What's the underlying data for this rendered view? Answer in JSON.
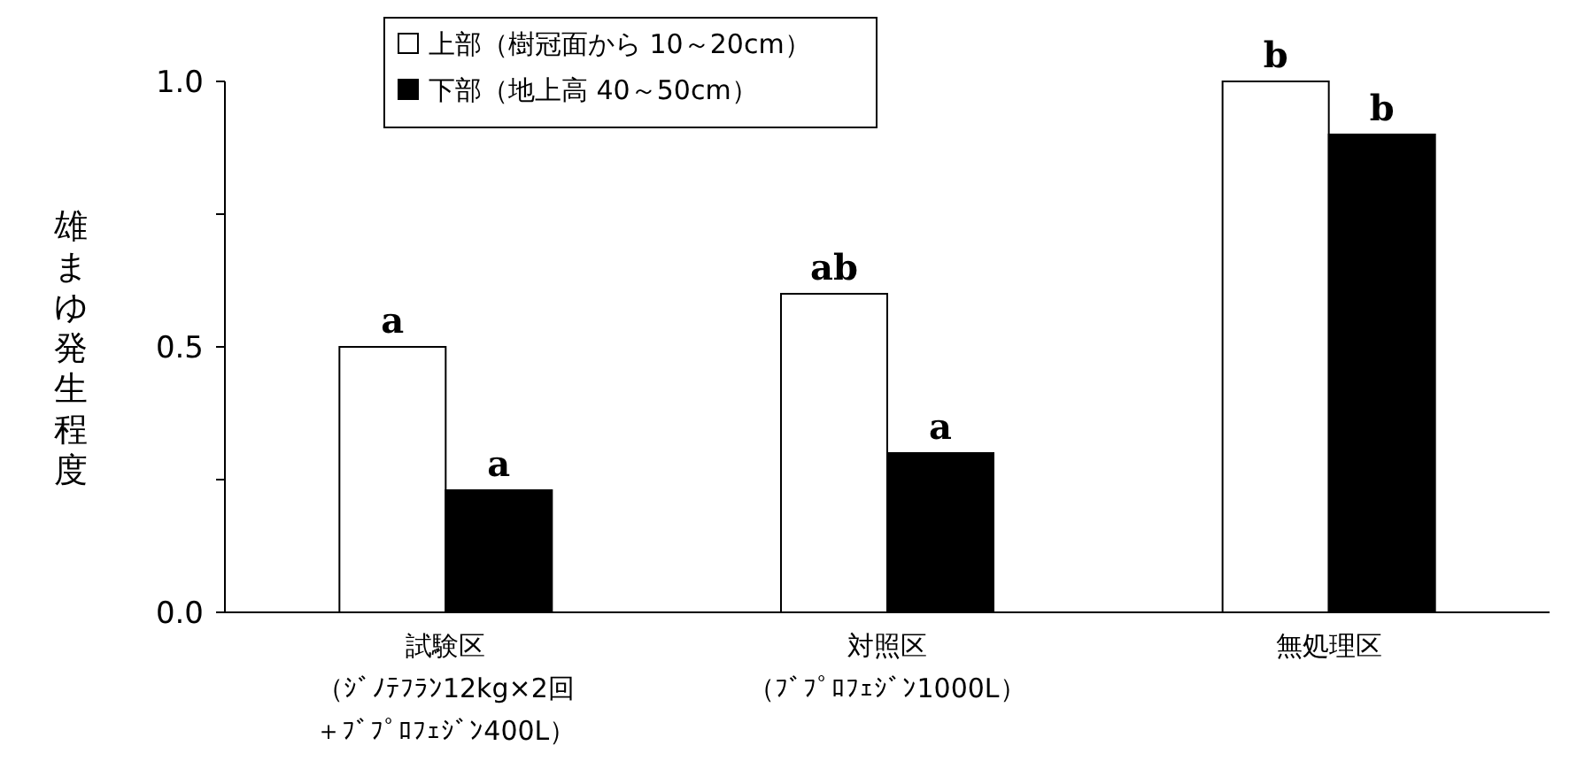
{
  "chart_data": {
    "type": "bar",
    "ylabel": "雄まゆ発生程度",
    "categories": [
      "試験区（ｼﾞﾉﾃﾌﾗﾝ12kg×2回＋ﾌﾞﾌﾟﾛﾌｪｼﾞﾝ400L）",
      "対照区（ﾌﾞﾌﾟﾛﾌｪｼﾞﾝ1000L）",
      "無処理区"
    ],
    "series": [
      {
        "name": "上部（樹冠面から 10～20cm）",
        "color": "#ffffff",
        "values": [
          0.5,
          0.6,
          1.0
        ],
        "value_labels": [
          "a",
          "ab",
          "b"
        ]
      },
      {
        "name": "下部（地上高 40～50cm）",
        "color": "#000000",
        "values": [
          0.23,
          0.3,
          0.9
        ],
        "value_labels": [
          "a",
          "a",
          "b"
        ]
      }
    ],
    "ylim": [
      0,
      1
    ],
    "yticks": [
      {
        "value": 0,
        "label": "0.0"
      },
      {
        "value": 0.25,
        "label": null
      },
      {
        "value": 0.5,
        "label": "0.5"
      },
      {
        "value": 0.75,
        "label": null
      },
      {
        "value": 1,
        "label": "1.0"
      }
    ],
    "grid": false,
    "legend": "top left"
  }
}
